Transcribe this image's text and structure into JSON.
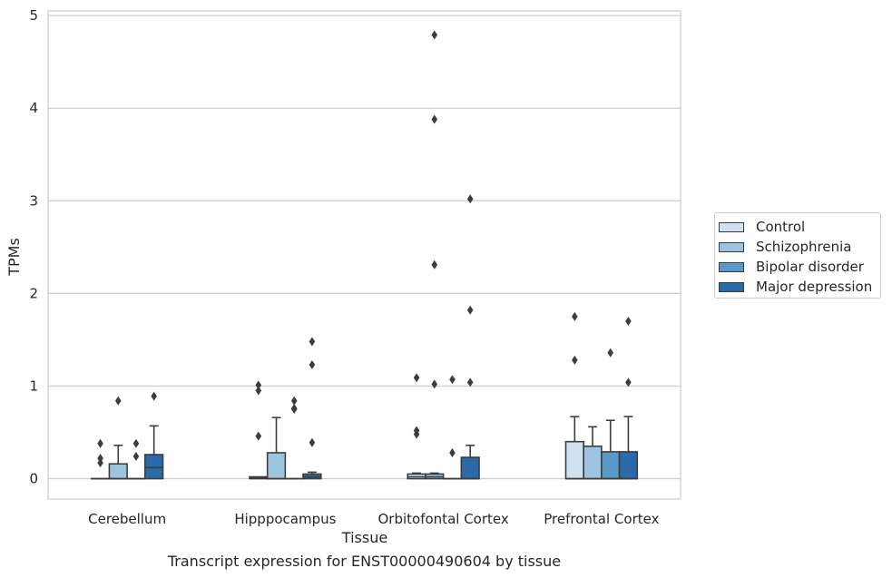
{
  "chart_data": {
    "type": "box",
    "xlabel": "Tissue",
    "ylabel": "TPMs",
    "caption": "Transcript expression for ENST00000490604 by tissue",
    "ylim": [
      -0.22,
      5.05
    ],
    "yticks": [
      0,
      1,
      2,
      3,
      4,
      5
    ],
    "grid": "horizontal",
    "legend_position": "right",
    "categories": [
      "Cerebellum",
      "Hipppocampus",
      "Orbitofontal Cortex",
      "Prefrontal Cortex"
    ],
    "series": [
      {
        "name": "Control",
        "color": "#d0e1f2",
        "boxes": [
          {
            "min": 0,
            "q1": 0,
            "median": 0,
            "q3": 0,
            "max": 0,
            "outliers": [
              0.38,
              0.22,
              0.17
            ]
          },
          {
            "min": 0,
            "q1": 0,
            "median": 0.01,
            "q3": 0.02,
            "max": 0.02,
            "outliers": [
              1.01,
              0.95,
              0.46
            ]
          },
          {
            "min": 0,
            "q1": 0,
            "median": 0.02,
            "q3": 0.05,
            "max": 0.06,
            "outliers": [
              1.09,
              0.52,
              0.48
            ]
          },
          {
            "min": 0,
            "q1": 0,
            "median": 0,
            "q3": 0.4,
            "max": 0.67,
            "outliers": [
              1.75,
              1.28
            ]
          }
        ]
      },
      {
        "name": "Schizophrenia",
        "color": "#9dc3de",
        "boxes": [
          {
            "min": 0,
            "q1": 0,
            "median": 0,
            "q3": 0.16,
            "max": 0.36,
            "outliers": [
              0.84
            ]
          },
          {
            "min": 0,
            "q1": 0,
            "median": 0,
            "q3": 0.28,
            "max": 0.66,
            "outliers": []
          },
          {
            "min": 0,
            "q1": 0,
            "median": 0.02,
            "q3": 0.05,
            "max": 0.06,
            "outliers": [
              4.79,
              3.88,
              2.31,
              1.02
            ]
          },
          {
            "min": 0,
            "q1": 0,
            "median": 0,
            "q3": 0.35,
            "max": 0.56,
            "outliers": []
          }
        ]
      },
      {
        "name": "Bipolar disorder",
        "color": "#5a9ac8",
        "boxes": [
          {
            "min": 0,
            "q1": 0,
            "median": 0,
            "q3": 0,
            "max": 0,
            "outliers": [
              0.38,
              0.24
            ]
          },
          {
            "min": 0,
            "q1": 0,
            "median": 0,
            "q3": 0,
            "max": 0,
            "outliers": [
              0.84,
              0.76,
              0.75
            ]
          },
          {
            "min": 0,
            "q1": 0,
            "median": 0,
            "q3": 0,
            "max": 0,
            "outliers": [
              1.07,
              0.28
            ]
          },
          {
            "min": 0,
            "q1": 0,
            "median": 0,
            "q3": 0.29,
            "max": 0.63,
            "outliers": [
              1.36
            ]
          }
        ]
      },
      {
        "name": "Major depression",
        "color": "#2b6aa9",
        "boxes": [
          {
            "min": 0,
            "q1": 0,
            "median": 0.12,
            "q3": 0.26,
            "max": 0.57,
            "outliers": [
              0.89
            ]
          },
          {
            "min": 0,
            "q1": 0,
            "median": 0.02,
            "q3": 0.05,
            "max": 0.07,
            "outliers": [
              1.48,
              1.23,
              0.39
            ]
          },
          {
            "min": 0,
            "q1": 0,
            "median": 0,
            "q3": 0.23,
            "max": 0.36,
            "outliers": [
              3.02,
              1.82,
              1.04
            ]
          },
          {
            "min": 0,
            "q1": 0,
            "median": 0,
            "q3": 0.29,
            "max": 0.67,
            "outliers": [
              1.7,
              1.04
            ]
          }
        ]
      }
    ]
  }
}
